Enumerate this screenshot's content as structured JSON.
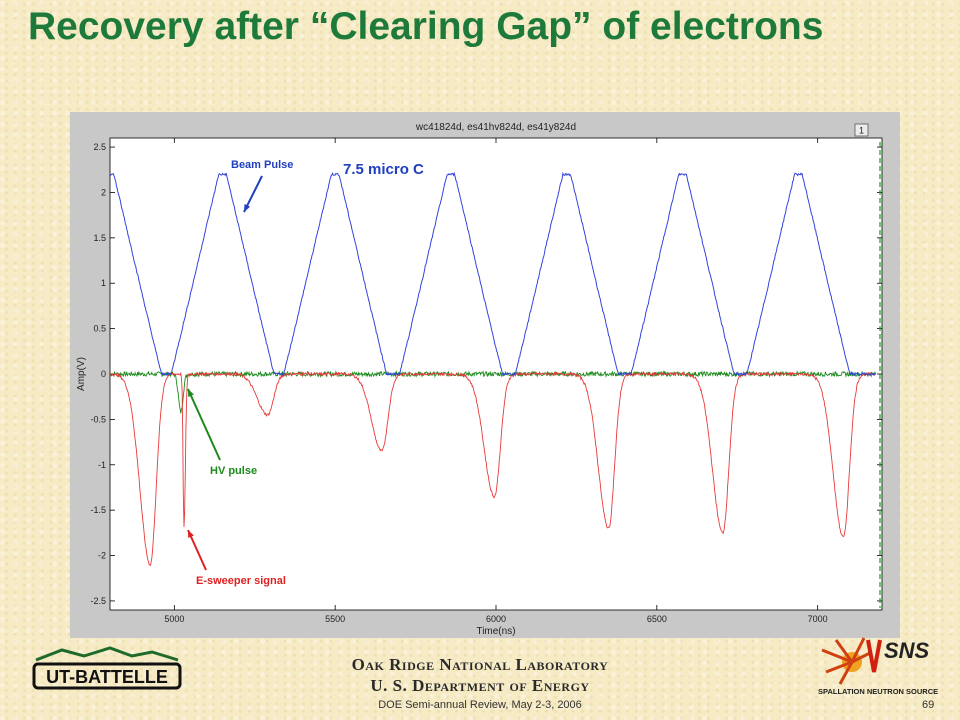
{
  "slide": {
    "title": "Recovery after “Clearing Gap” of electrons",
    "lab_name_line1": "Oak Ridge National Laboratory",
    "lab_name_line2": "U. S. Department of Energy",
    "review": "DOE Semi-annual Review, May 2-3, 2006",
    "page_number": "69",
    "ut_logo_text": "UT-BATTELLE",
    "sns_logo_text": "SNS",
    "sns_logo_sub": "SPALLATION NEUTRON SOURCE"
  },
  "chart_data": {
    "type": "line",
    "title": "wc41824d, es41hv824d, es41y824d",
    "xlabel": "Time(ns)",
    "ylabel": "Amp(V)",
    "xlim": [
      4800,
      7200
    ],
    "ylim": [
      -2.6,
      2.6
    ],
    "x_ticks": [
      5000,
      5500,
      6000,
      6500,
      7000
    ],
    "y_ticks": [
      2.5,
      2,
      1.5,
      1,
      0.5,
      0,
      -0.5,
      -1,
      -1.5,
      -2,
      -2.5
    ],
    "figure_number": "1",
    "grid": false,
    "colors": {
      "beam": "#3344dd",
      "sweeper": "#e83a3a",
      "hv": "#1a8a1a"
    },
    "series": [
      {
        "name": "Beam Pulse",
        "color": "#3344dd",
        "peak_value": 2.2,
        "baseline": 0,
        "peak_times_ns": [
          4800,
          5150,
          5500,
          5860,
          6220,
          6580,
          6940
        ],
        "period_ns": 360
      },
      {
        "name": "E-sweeper signal",
        "color": "#e83a3a",
        "dip_times_ns": [
          4925,
          5030,
          5290,
          5645,
          5995,
          6350,
          6705,
          7080
        ],
        "dip_values": [
          -2.1,
          -1.7,
          -0.45,
          -0.85,
          -1.35,
          -1.7,
          -1.75,
          -1.8
        ]
      },
      {
        "name": "HV pulse",
        "color": "#1a8a1a",
        "dip_times_ns": [
          5020
        ],
        "dip_values": [
          -0.42
        ]
      }
    ],
    "annotations": [
      {
        "text": "Beam Pulse",
        "color": "#1f3fbf"
      },
      {
        "text": "7.5 micro C",
        "color": "#1f3fbf"
      },
      {
        "text": "HV pulse",
        "color": "#1a8a1a"
      },
      {
        "text": "E-sweeper signal",
        "color": "#e02020"
      }
    ]
  }
}
